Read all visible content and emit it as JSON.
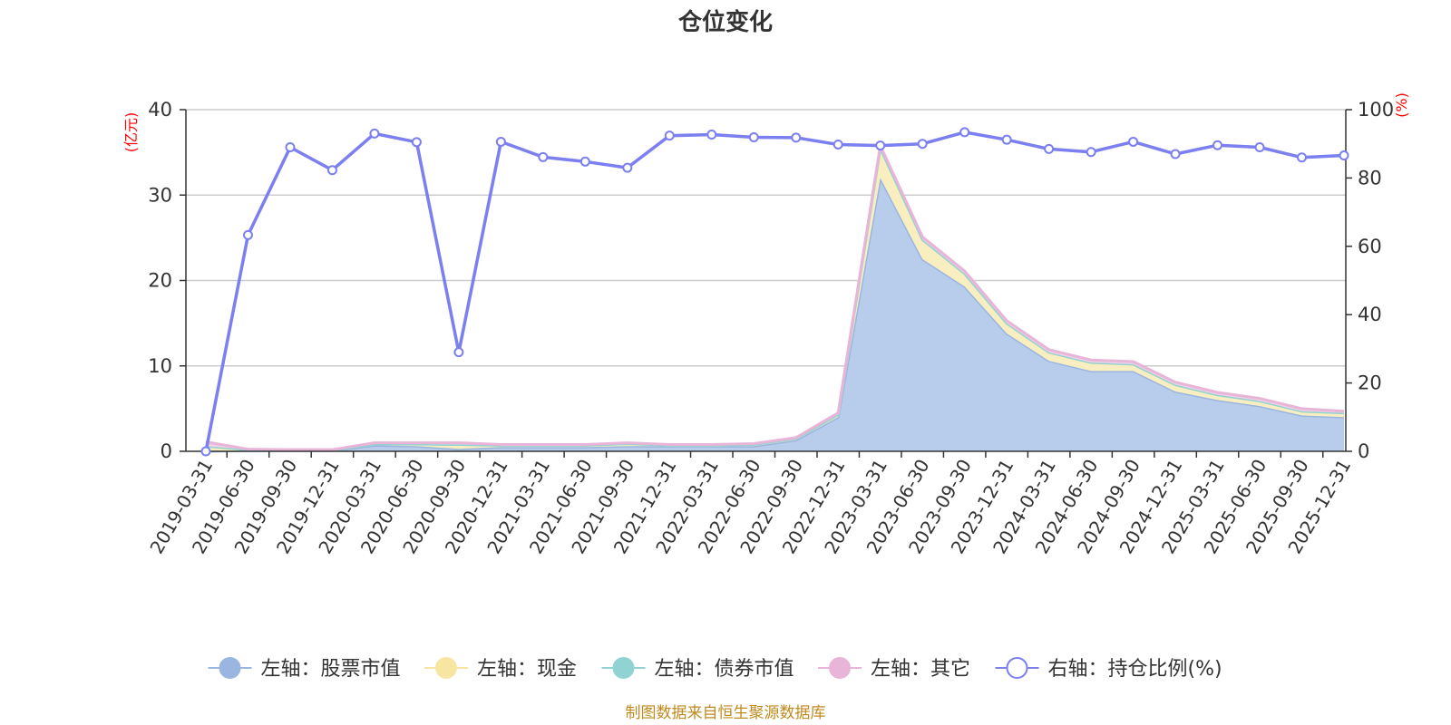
{
  "chart_data": {
    "type": "area",
    "title": "仓位变化",
    "left_unit": "(亿元)",
    "right_unit": "(%)",
    "ylim_left": [
      0,
      40
    ],
    "ylim_right": [
      0,
      100
    ],
    "left_ticks": [
      "0",
      "10",
      "20",
      "30",
      "40"
    ],
    "right_ticks": [
      "0",
      "20",
      "40",
      "60",
      "80",
      "100"
    ],
    "grid": true,
    "legend_position": "bottom",
    "categories": [
      "2019-03-31",
      "2019-06-30",
      "2019-09-30",
      "2019-12-31",
      "2020-03-31",
      "2020-06-30",
      "2020-09-30",
      "2020-12-31",
      "2021-03-31",
      "2021-06-30",
      "2021-09-30",
      "2021-12-31",
      "2022-03-31",
      "2022-06-30",
      "2022-09-30",
      "2022-12-31",
      "2023-03-31",
      "2023-06-30",
      "2023-09-30",
      "2023-12-31",
      "2024-03-31",
      "2024-06-30",
      "2024-09-30",
      "2024-12-31",
      "2025-03-31",
      "2025-06-30",
      "2025-09-30",
      "2025-12-31"
    ],
    "series": [
      {
        "name": "左轴：股票市值",
        "axis": "left",
        "kind": "area",
        "color": "#9ab6e0",
        "fill": "#b7cdeb",
        "values": [
          0,
          0.1,
          0.1,
          0.1,
          0.7,
          0.6,
          0.3,
          0.5,
          0.5,
          0.5,
          0.6,
          0.6,
          0.6,
          0.6,
          1.3,
          4.0,
          32.0,
          22.5,
          19.3,
          13.8,
          10.6,
          9.4,
          9.4,
          7.0,
          6.0,
          5.3,
          4.2,
          4.0
        ]
      },
      {
        "name": "左轴：现金",
        "axis": "left",
        "kind": "area",
        "color": "#f7e6a2",
        "fill": "#f9eec0",
        "values": [
          0.6,
          0.1,
          0.05,
          0.05,
          0.15,
          0.25,
          0.5,
          0.2,
          0.2,
          0.2,
          0.3,
          0.1,
          0.1,
          0.2,
          0.2,
          0.3,
          3.5,
          2.3,
          1.5,
          1.2,
          1.0,
          1.0,
          0.8,
          0.8,
          0.6,
          0.6,
          0.5,
          0.5
        ]
      },
      {
        "name": "左轴：债券市值",
        "axis": "left",
        "kind": "area",
        "color": "#91d2d2",
        "fill": "#c4e8e8",
        "values": [
          0,
          0,
          0,
          0,
          0,
          0,
          0,
          0,
          0,
          0,
          0,
          0,
          0,
          0,
          0,
          0,
          0,
          0,
          0,
          0,
          0,
          0,
          0,
          0,
          0,
          0,
          0,
          0
        ]
      },
      {
        "name": "左轴：其它",
        "axis": "left",
        "kind": "area",
        "color": "#e8b4d8",
        "fill": "#f1d2e7",
        "values": [
          0.5,
          0.05,
          0.05,
          0.05,
          0.15,
          0.15,
          0.2,
          0.1,
          0.1,
          0.1,
          0.1,
          0.1,
          0.1,
          0.1,
          0.1,
          0.2,
          0.3,
          0.3,
          0.3,
          0.3,
          0.3,
          0.3,
          0.3,
          0.3,
          0.3,
          0.3,
          0.3,
          0.2
        ]
      },
      {
        "name": "右轴：持仓比例(%)",
        "axis": "right",
        "kind": "line",
        "color": "#7b7ff0",
        "values": [
          0,
          63.3,
          89.0,
          82.3,
          93.0,
          90.5,
          29.0,
          90.6,
          86.1,
          84.8,
          83.0,
          92.4,
          92.7,
          91.9,
          91.8,
          89.8,
          89.5,
          90.0,
          93.4,
          91.2,
          88.5,
          87.6,
          90.6,
          87.0,
          89.6,
          89.0,
          86.0,
          86.6
        ]
      }
    ],
    "source_note": "制图数据来自恒生聚源数据库"
  }
}
